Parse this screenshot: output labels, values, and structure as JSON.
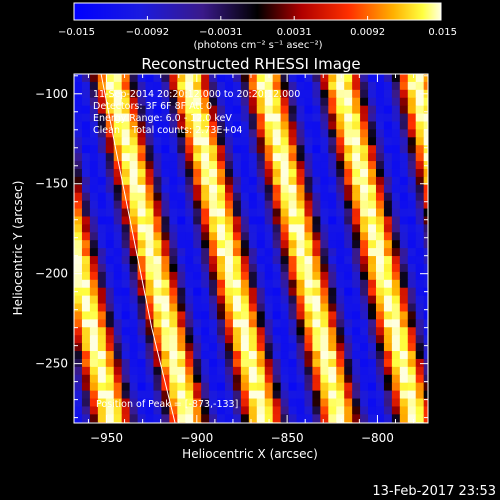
{
  "colorbar": {
    "ticks": [
      "-0.015",
      "-0.0092",
      "-0.0031",
      "0.0031",
      "0.0092",
      "0.015"
    ],
    "units_label": "(photons cm⁻² s⁻¹ asec⁻²)",
    "range": [
      -0.015,
      0.015
    ]
  },
  "footer": {
    "timestamp": "13-Feb-2017 23:53"
  },
  "chart_data": {
    "type": "heatmap",
    "title": "Reconstructed RHESSI Image",
    "xlabel": "Heliocentric X (arcsec)",
    "ylabel": "Heliocentric Y (arcsec)",
    "xlim": [
      -968,
      -772
    ],
    "ylim": [
      -283,
      -89
    ],
    "xticks": [
      -950,
      -900,
      -850,
      -800
    ],
    "yticks": [
      -100,
      -150,
      -200,
      -250
    ],
    "info_lines": [
      "11-Sep-2014 20:20:12.000 to 20:20:12.000",
      "Detectors: 3F 6F 8F Att 0",
      "Energy Range: 6.0 - 12.0 keV",
      "Clean    Total counts: 2.73E+04"
    ],
    "peak_label": "Position of Peak = [-873,-133]",
    "peak_position": [
      -873,
      -133
    ],
    "stripes": {
      "description_values": "alternating positive (bright) and negative (blue) flux bands",
      "slope_dx_per_dy": -0.22,
      "bright_centers_x_at_top": [
        -949,
        -905,
        -859,
        -818
      ],
      "dark_centers_x_at_top": [
        -928,
        -883,
        -837,
        -796
      ],
      "peak_value": 0.015,
      "min_value": -0.012
    },
    "limb_curve": [
      [
        -953,
        -89
      ],
      [
        -945,
        -130
      ],
      [
        -935,
        -180
      ],
      [
        -925,
        -230
      ],
      [
        -912,
        -283
      ]
    ]
  }
}
